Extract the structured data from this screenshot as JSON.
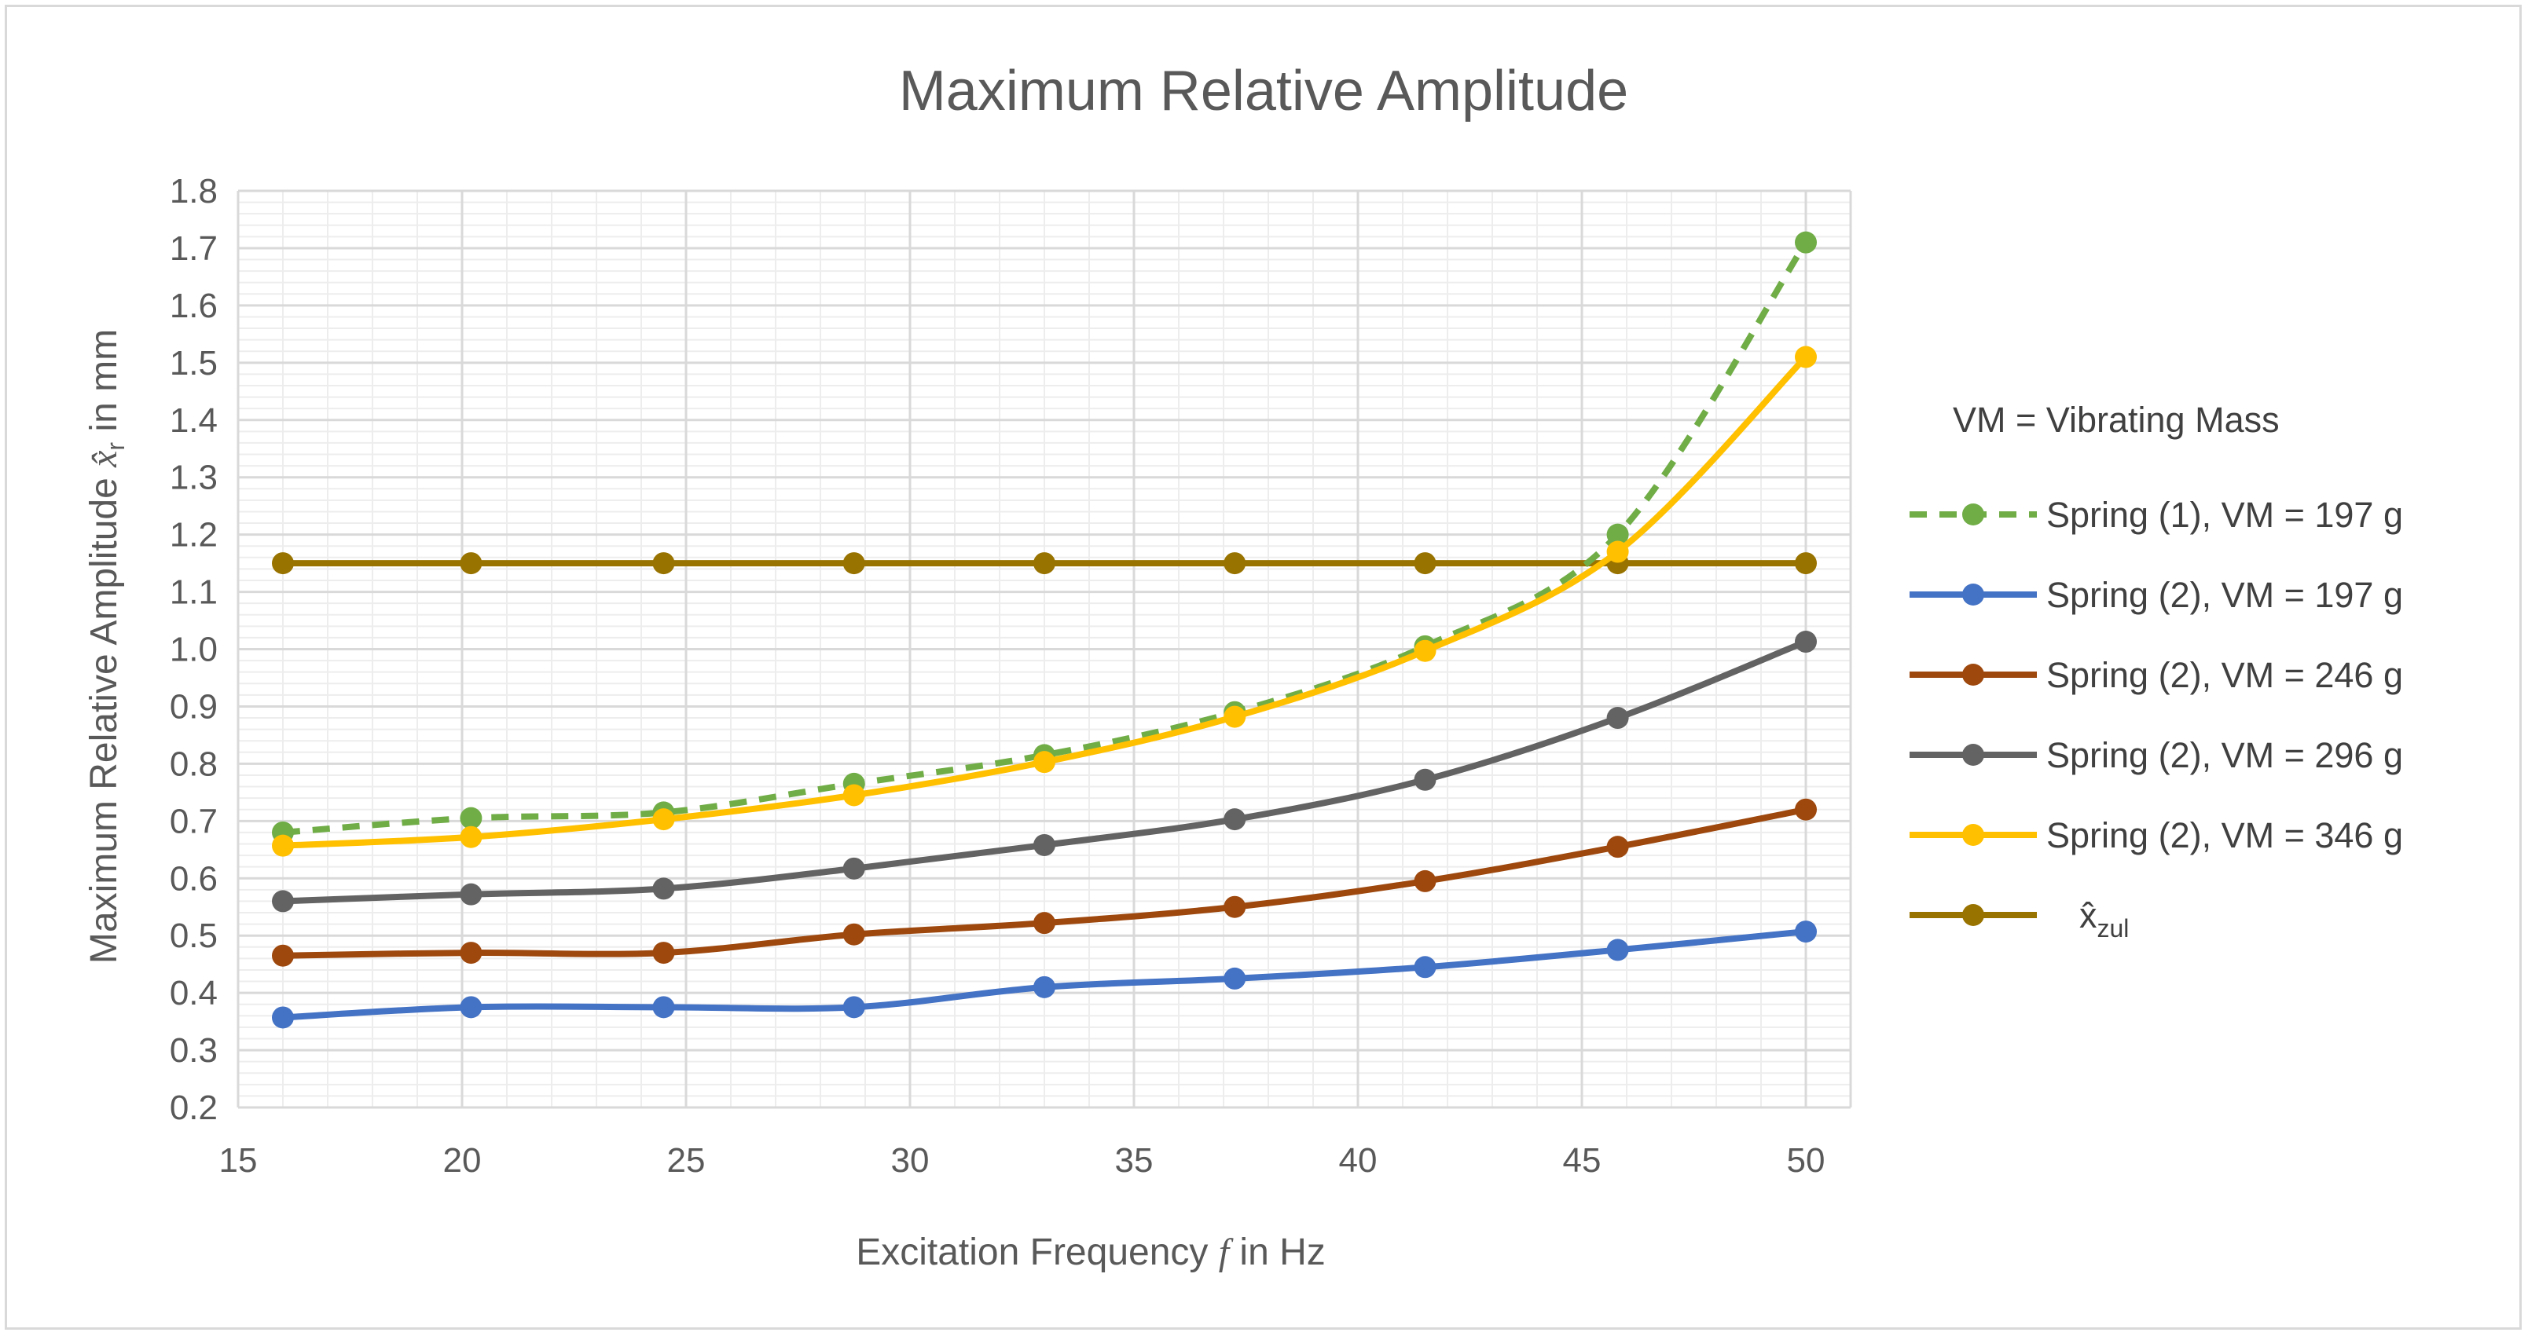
{
  "chart_data": {
    "type": "line",
    "title": "Maximum Relative Amplitude",
    "xlabel": "Excitation Frequency f in Hz",
    "xlabel_parts": [
      "Excitation Frequency ",
      "f",
      " in Hz"
    ],
    "ylabel": "Maximum Relative Amplitude x̂r in mm",
    "ylabel_parts": [
      "Maximum Relative Amplitude ",
      "x̂",
      "r",
      "  in mm"
    ],
    "xlim": [
      15,
      51
    ],
    "ylim": [
      0.2,
      1.8
    ],
    "xticks": [
      15,
      20,
      25,
      30,
      35,
      40,
      45,
      50
    ],
    "yticks": [
      0.2,
      0.3,
      0.4,
      0.5,
      0.6,
      0.7,
      0.8,
      0.9,
      1.0,
      1.1,
      1.2,
      1.3,
      1.4,
      1.5,
      1.6,
      1.7,
      1.8
    ],
    "grid": true,
    "legend_title": "VM = Vibrating Mass",
    "legend_position": "right",
    "x": [
      16,
      20.2,
      24.5,
      28.75,
      33,
      37.25,
      41.5,
      45.8,
      50
    ],
    "series": [
      {
        "name": "Spring (1), VM = 197 g",
        "color": "#70ad47",
        "dashed": true,
        "values": [
          0.68,
          0.705,
          0.715,
          0.765,
          0.815,
          0.89,
          1.005,
          1.2,
          1.71
        ]
      },
      {
        "name": "Spring (2), VM = 197 g",
        "color": "#4472c4",
        "dashed": false,
        "values": [
          0.357,
          0.375,
          0.375,
          0.375,
          0.41,
          0.425,
          0.445,
          0.475,
          0.507
        ]
      },
      {
        "name": "Spring (2), VM = 246 g",
        "color": "#9e480e",
        "dashed": false,
        "values": [
          0.465,
          0.47,
          0.47,
          0.502,
          0.522,
          0.55,
          0.595,
          0.655,
          0.72
        ]
      },
      {
        "name": "Spring (2), VM = 296 g",
        "color": "#636363",
        "dashed": false,
        "values": [
          0.56,
          0.572,
          0.582,
          0.617,
          0.658,
          0.703,
          0.772,
          0.88,
          1.013
        ]
      },
      {
        "name": "Spring (2), VM = 346 g",
        "color": "#ffc000",
        "dashed": false,
        "values": [
          0.657,
          0.672,
          0.703,
          0.745,
          0.803,
          0.882,
          0.997,
          1.17,
          1.51
        ]
      },
      {
        "name": "x̂zul",
        "name_parts": [
          "x̂",
          "zul"
        ],
        "color": "#997300",
        "dashed": false,
        "values": [
          1.15,
          1.15,
          1.15,
          1.15,
          1.15,
          1.15,
          1.15,
          1.15,
          1.15
        ]
      }
    ]
  }
}
